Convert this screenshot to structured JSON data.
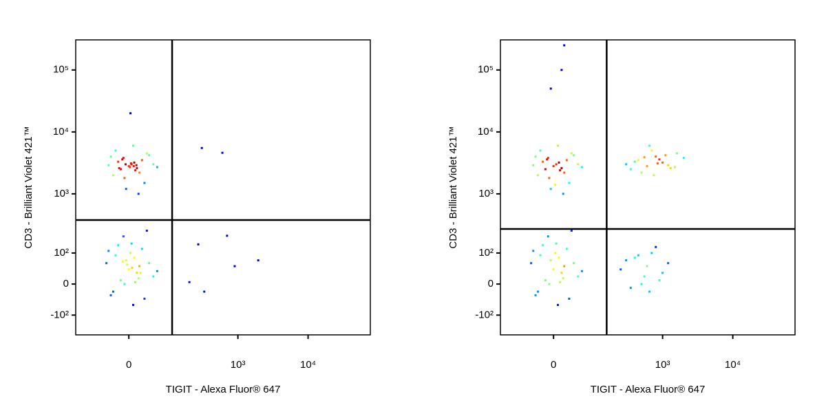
{
  "chart_data": [
    {
      "type": "scatter",
      "x_label": "TIGIT - Alexa Fluor® 647",
      "y_label": "CD3 - Brilliant Violet 421™",
      "xscale": "biexponential",
      "yscale": "biexponential",
      "colormap": "jet",
      "xlim": [
        -155,
        77000
      ],
      "ylim": [
        -226,
        306000
      ],
      "xticks": [
        0,
        {
          "value": 1000,
          "label": "10³"
        },
        {
          "value": 10000,
          "label": "10⁴"
        }
      ],
      "yticks": [
        {
          "value": -100,
          "label": "-10²"
        },
        0,
        {
          "value": 100,
          "label": "10²"
        },
        {
          "value": 1000,
          "label": "10³"
        },
        {
          "value": 10000,
          "label": "10⁴"
        },
        {
          "value": 100000,
          "label": "10⁵"
        }
      ],
      "quadrant": {
        "x": 109,
        "y": 375
      },
      "x": [
        0,
        10,
        -15,
        25,
        -30,
        40,
        5,
        -8,
        15,
        -25,
        30,
        -10,
        20,
        50,
        -40,
        8,
        -5,
        35,
        12,
        -20,
        60,
        -35,
        3,
        18,
        -12,
        0,
        10,
        -15,
        25,
        -30,
        40,
        5,
        -8,
        15,
        -25,
        30,
        -10,
        20,
        50,
        -40,
        8,
        -5,
        35,
        12,
        -20,
        60,
        -35,
        3,
        18,
        -45,
        2,
        -6,
        14,
        -18,
        6,
        -3,
        22,
        9,
        -11,
        4,
        304,
        600,
        270,
        700,
        900,
        1950,
        200,
        330
      ],
      "y": [
        2800,
        3200,
        2500,
        3500,
        2000,
        4200,
        3000,
        1800,
        2600,
        5000,
        1500,
        3800,
        2200,
        3000,
        2900,
        6000,
        1200,
        4500,
        2400,
        3300,
        2700,
        4000,
        20000,
        1000,
        3600,
        40,
        80,
        10,
        120,
        -20,
        60,
        150,
        0,
        30,
        90,
        -40,
        200,
        50,
        20,
        110,
        -60,
        70,
        250,
        5,
        140,
        35,
        -30,
        100,
        15,
        60,
        2700,
        3000,
        2900,
        2600,
        45,
        55,
        30,
        2800,
        65,
        3100,
        5500,
        4600,
        145,
        205,
        50,
        70,
        5,
        -20
      ]
    },
    {
      "type": "scatter",
      "x_label": "TIGIT - Alexa Fluor® 647",
      "y_label": "CD3 - Brilliant Violet 421™",
      "xscale": "biexponential",
      "yscale": "biexponential",
      "colormap": "jet",
      "xlim": [
        -155,
        77000
      ],
      "ylim": [
        -226,
        306000
      ],
      "xticks": [
        0,
        {
          "value": 1000,
          "label": "10³"
        },
        {
          "value": 10000,
          "label": "10⁴"
        }
      ],
      "yticks": [
        {
          "value": -100,
          "label": "-10²"
        },
        0,
        {
          "value": 100,
          "label": "10²"
        },
        {
          "value": 1000,
          "label": "10³"
        },
        {
          "value": 10000,
          "label": "10⁴"
        },
        {
          "value": 100000,
          "label": "10⁵"
        }
      ],
      "quadrant": {
        "x": 155,
        "y": 267
      },
      "x": [
        0,
        10,
        -15,
        25,
        -30,
        40,
        5,
        -8,
        15,
        -25,
        30,
        -10,
        20,
        50,
        -40,
        8,
        -5,
        35,
        12,
        -20,
        60,
        -35,
        3,
        18,
        -12,
        300,
        450,
        600,
        800,
        1000,
        1300,
        1600,
        2000,
        500,
        700,
        900,
        1200,
        400,
        750,
        1100,
        350,
        550,
        850,
        1500,
        650,
        0,
        10,
        -15,
        25,
        -30,
        40,
        5,
        -8,
        15,
        -25,
        30,
        -10,
        20,
        50,
        -40,
        8,
        -5,
        35,
        12,
        -20,
        60,
        -35,
        3,
        18,
        -45,
        250,
        400,
        550,
        700,
        900,
        1200,
        350,
        600,
        800,
        500,
        300,
        1000,
        450,
        650,
        20,
        15,
        -5
      ],
      "y": [
        2800,
        3200,
        2500,
        3500,
        2000,
        4200,
        3000,
        1800,
        2600,
        5000,
        1500,
        3800,
        2200,
        3000,
        2900,
        6000,
        1200,
        4500,
        2400,
        3300,
        2700,
        4000,
        1400,
        1000,
        3600,
        3000,
        3500,
        2800,
        4000,
        3200,
        2600,
        4500,
        3800,
        2200,
        5000,
        3600,
        2900,
        3300,
        2000,
        4200,
        2500,
        3900,
        3100,
        2700,
        6000,
        40,
        80,
        10,
        120,
        -20,
        60,
        150,
        0,
        30,
        90,
        -40,
        200,
        50,
        20,
        110,
        -60,
        70,
        250,
        5,
        140,
        35,
        -30,
        100,
        15,
        60,
        40,
        80,
        20,
        100,
        10,
        60,
        -10,
        50,
        130,
        0,
        70,
        30,
        90,
        -20,
        250000,
        100000,
        50000
      ]
    }
  ]
}
